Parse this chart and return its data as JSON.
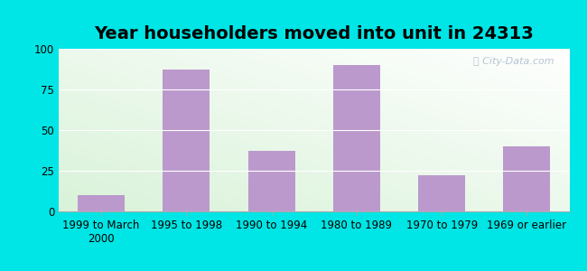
{
  "title": "Year householders moved into unit in 24313",
  "categories": [
    "1999 to March\n2000",
    "1995 to 1998",
    "1990 to 1994",
    "1980 to 1989",
    "1970 to 1979",
    "1969 or earlier"
  ],
  "values": [
    10,
    87,
    37,
    90,
    22,
    40
  ],
  "bar_color": "#bb99cc",
  "ylim": [
    0,
    100
  ],
  "yticks": [
    0,
    25,
    50,
    75,
    100
  ],
  "background_outer": "#00e5e5",
  "watermark": "City-Data.com",
  "title_fontsize": 14,
  "tick_fontsize": 8.5,
  "bar_width": 0.55
}
